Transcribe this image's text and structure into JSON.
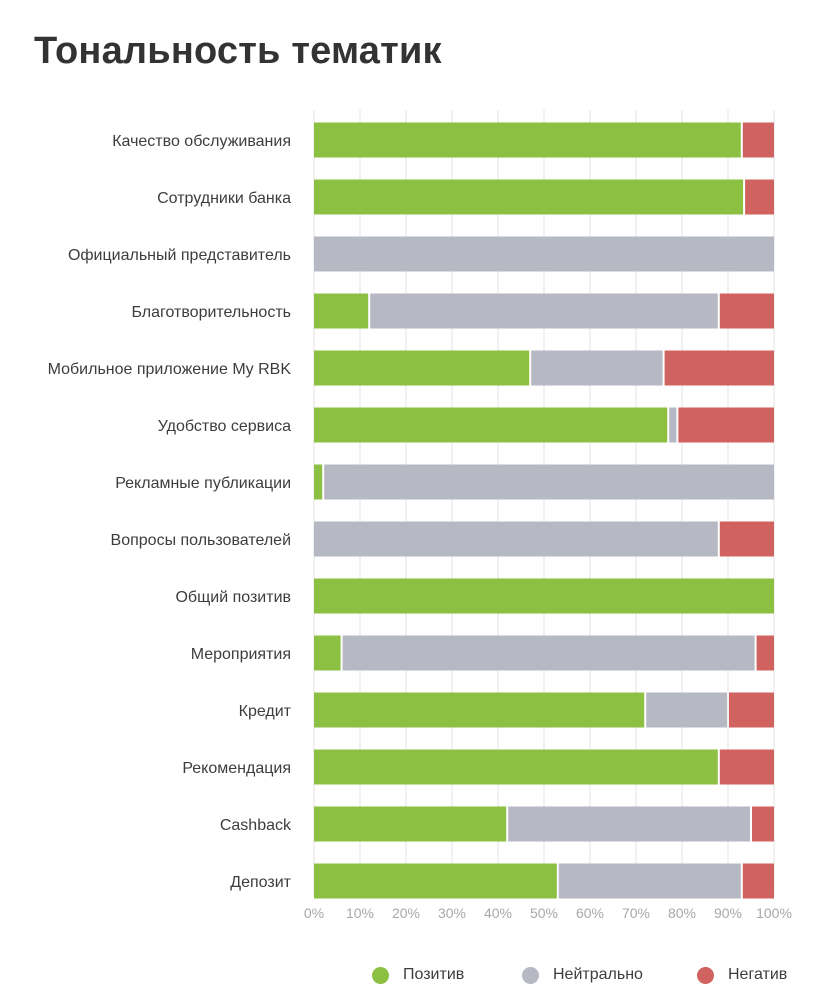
{
  "title": "Тональность тематик",
  "colors": {
    "positive": "#8bc043",
    "neutral": "#b6b9c3",
    "negative": "#d0635f",
    "grid": "#e3e3e3"
  },
  "chart_data": {
    "type": "bar",
    "orientation": "horizontal",
    "stacked": true,
    "normalized": true,
    "title": "Тональность тематик",
    "xlim": [
      0,
      100
    ],
    "x_ticks": [
      "0%",
      "10%",
      "20%",
      "30%",
      "40%",
      "50%",
      "60%",
      "70%",
      "80%",
      "90%",
      "100%"
    ],
    "categories": [
      "Качество обслуживания",
      "Сотрудники банка",
      "Официальный представитель",
      "Благотворительность",
      "Мобильное приложение My RBK",
      "Удобство сервиса",
      "Рекламные публикации",
      "Вопросы пользователей",
      "Общий позитив",
      "Мероприятия",
      "Кредит",
      "Рекомендация",
      "Cashback",
      "Депозит"
    ],
    "series": [
      {
        "name": "Позитив",
        "key": "positive",
        "values": [
          93,
          93.5,
          0,
          12,
          47,
          77,
          2,
          0,
          100,
          6,
          72,
          88,
          42,
          53
        ]
      },
      {
        "name": "Нейтрально",
        "key": "neutral",
        "values": [
          0,
          0,
          100,
          76,
          29,
          2,
          98,
          88,
          0,
          90,
          18,
          0,
          53,
          40
        ]
      },
      {
        "name": "Негатив",
        "key": "negative",
        "values": [
          7,
          6.5,
          0,
          12,
          24,
          21,
          0,
          12,
          0,
          4,
          10,
          12,
          5,
          7
        ]
      }
    ],
    "legend": {
      "position": "bottom-right"
    }
  }
}
